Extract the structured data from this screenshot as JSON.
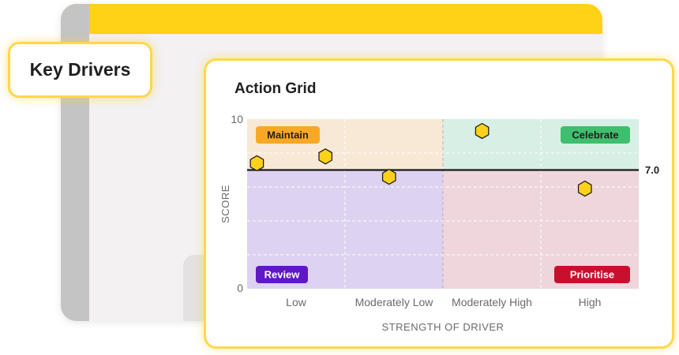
{
  "key_drivers_label": "Key Drivers",
  "card": {
    "title": "Action Grid"
  },
  "colors": {
    "brand_yellow": "#ffd117",
    "maintain_bg": "#f8e8d6",
    "celebrate_bg": "#d7efe5",
    "review_bg": "#ddd2f0",
    "prioritise_bg": "#efd6dc",
    "point_fill": "#ffd21a",
    "point_stroke": "#1f1f1f"
  },
  "chart_data": {
    "type": "scatter",
    "title": "Action Grid",
    "xlabel": "STRENGTH OF DRIVER",
    "ylabel": "SCORE",
    "x_categories": [
      "Low",
      "Moderately Low",
      "Moderately High",
      "High"
    ],
    "xlim": [
      0,
      4
    ],
    "ylim": [
      0,
      10
    ],
    "y_ticks": [
      "0",
      "10"
    ],
    "grid": true,
    "reference_line": {
      "value": 7.0,
      "label": "7.0"
    },
    "quadrants": [
      {
        "label": "Maintain",
        "position": "top-left",
        "color": "#f9a825",
        "text_color": "#1f1f1f"
      },
      {
        "label": "Celebrate",
        "position": "top-right",
        "color": "#3fbf6e",
        "text_color": "#1f1f1f"
      },
      {
        "label": "Review",
        "position": "bottom-left",
        "color": "#5f17c8",
        "text_color": "#ffffff"
      },
      {
        "label": "Prioritise",
        "position": "bottom-right",
        "color": "#c8102e",
        "text_color": "#ffffff"
      }
    ],
    "points": [
      {
        "x": 0.1,
        "y": 7.4
      },
      {
        "x": 0.8,
        "y": 7.8
      },
      {
        "x": 1.45,
        "y": 6.6
      },
      {
        "x": 2.4,
        "y": 9.3
      },
      {
        "x": 3.45,
        "y": 5.9
      }
    ]
  }
}
